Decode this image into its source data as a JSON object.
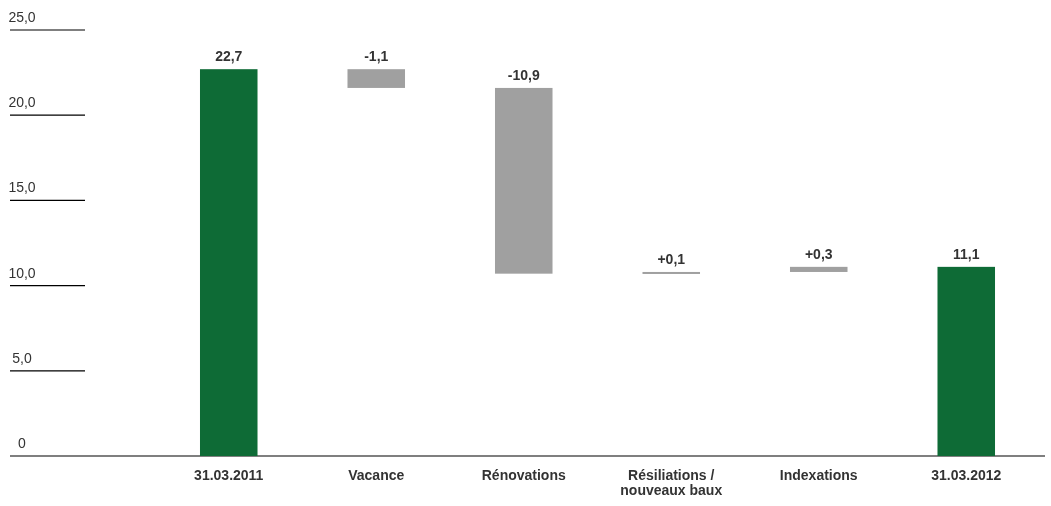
{
  "chart_data": {
    "type": "bar",
    "categories": [
      "31.03.2011",
      "Vacance",
      "Rénovations",
      "Résiliations / nouveaux baux",
      "Indexations",
      "31.03.2012"
    ],
    "values": [
      22.7,
      -1.1,
      -10.9,
      0.1,
      0.3,
      11.1
    ],
    "base": [
      0,
      22.7,
      21.6,
      10.7,
      10.8,
      0
    ],
    "colors": [
      "#0e6b36",
      "#a0a0a0",
      "#a0a0a0",
      "#a0a0a0",
      "#a0a0a0",
      "#0e6b36"
    ],
    "value_labels": [
      "22,7",
      "-1,1",
      "-10,9",
      "+0,1",
      "+0,3",
      "11,1"
    ],
    "ylim": [
      0,
      25
    ],
    "yticks": [
      {
        "value": 0,
        "label": "0"
      },
      {
        "value": 5,
        "label": "5,0"
      },
      {
        "value": 10,
        "label": "10,0"
      },
      {
        "value": 15,
        "label": "15,0"
      },
      {
        "value": 20,
        "label": "20,0"
      },
      {
        "value": 25,
        "label": "25,0"
      }
    ],
    "grid": false
  }
}
